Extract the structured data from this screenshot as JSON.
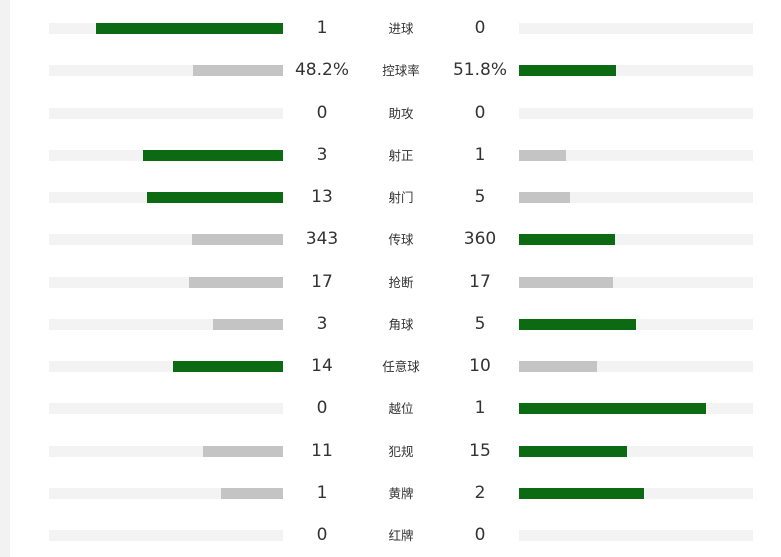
{
  "colors": {
    "leading": "#0b6a12",
    "trailing": "#c4c4c4",
    "track": "#f3f3f3"
  },
  "stats": [
    {
      "label": "进球",
      "home": "1",
      "away": "0",
      "home_fill": 0.8,
      "away_fill": 0.0,
      "home_color": "leading",
      "away_color": "none"
    },
    {
      "label": "控球率",
      "home": "48.2%",
      "away": "51.8%",
      "home_fill": 0.385,
      "away_fill": 0.415,
      "home_color": "trailing",
      "away_color": "leading"
    },
    {
      "label": "助攻",
      "home": "0",
      "away": "0",
      "home_fill": 0.0,
      "away_fill": 0.0,
      "home_color": "none",
      "away_color": "none"
    },
    {
      "label": "射正",
      "home": "3",
      "away": "1",
      "home_fill": 0.6,
      "away_fill": 0.2,
      "home_color": "leading",
      "away_color": "trailing"
    },
    {
      "label": "射门",
      "home": "13",
      "away": "5",
      "home_fill": 0.58,
      "away_fill": 0.22,
      "home_color": "leading",
      "away_color": "trailing"
    },
    {
      "label": "传球",
      "home": "343",
      "away": "360",
      "home_fill": 0.39,
      "away_fill": 0.41,
      "home_color": "trailing",
      "away_color": "leading"
    },
    {
      "label": "抢断",
      "home": "17",
      "away": "17",
      "home_fill": 0.4,
      "away_fill": 0.4,
      "home_color": "trailing",
      "away_color": "trailing"
    },
    {
      "label": "角球",
      "home": "3",
      "away": "5",
      "home_fill": 0.3,
      "away_fill": 0.5,
      "home_color": "trailing",
      "away_color": "leading"
    },
    {
      "label": "任意球",
      "home": "14",
      "away": "10",
      "home_fill": 0.47,
      "away_fill": 0.335,
      "home_color": "leading",
      "away_color": "trailing"
    },
    {
      "label": "越位",
      "home": "0",
      "away": "1",
      "home_fill": 0.0,
      "away_fill": 0.8,
      "home_color": "none",
      "away_color": "leading"
    },
    {
      "label": "犯规",
      "home": "11",
      "away": "15",
      "home_fill": 0.34,
      "away_fill": 0.46,
      "home_color": "trailing",
      "away_color": "leading"
    },
    {
      "label": "黄牌",
      "home": "1",
      "away": "2",
      "home_fill": 0.265,
      "away_fill": 0.535,
      "home_color": "trailing",
      "away_color": "leading"
    },
    {
      "label": "红牌",
      "home": "0",
      "away": "0",
      "home_fill": 0.0,
      "away_fill": 0.0,
      "home_color": "none",
      "away_color": "none"
    }
  ]
}
